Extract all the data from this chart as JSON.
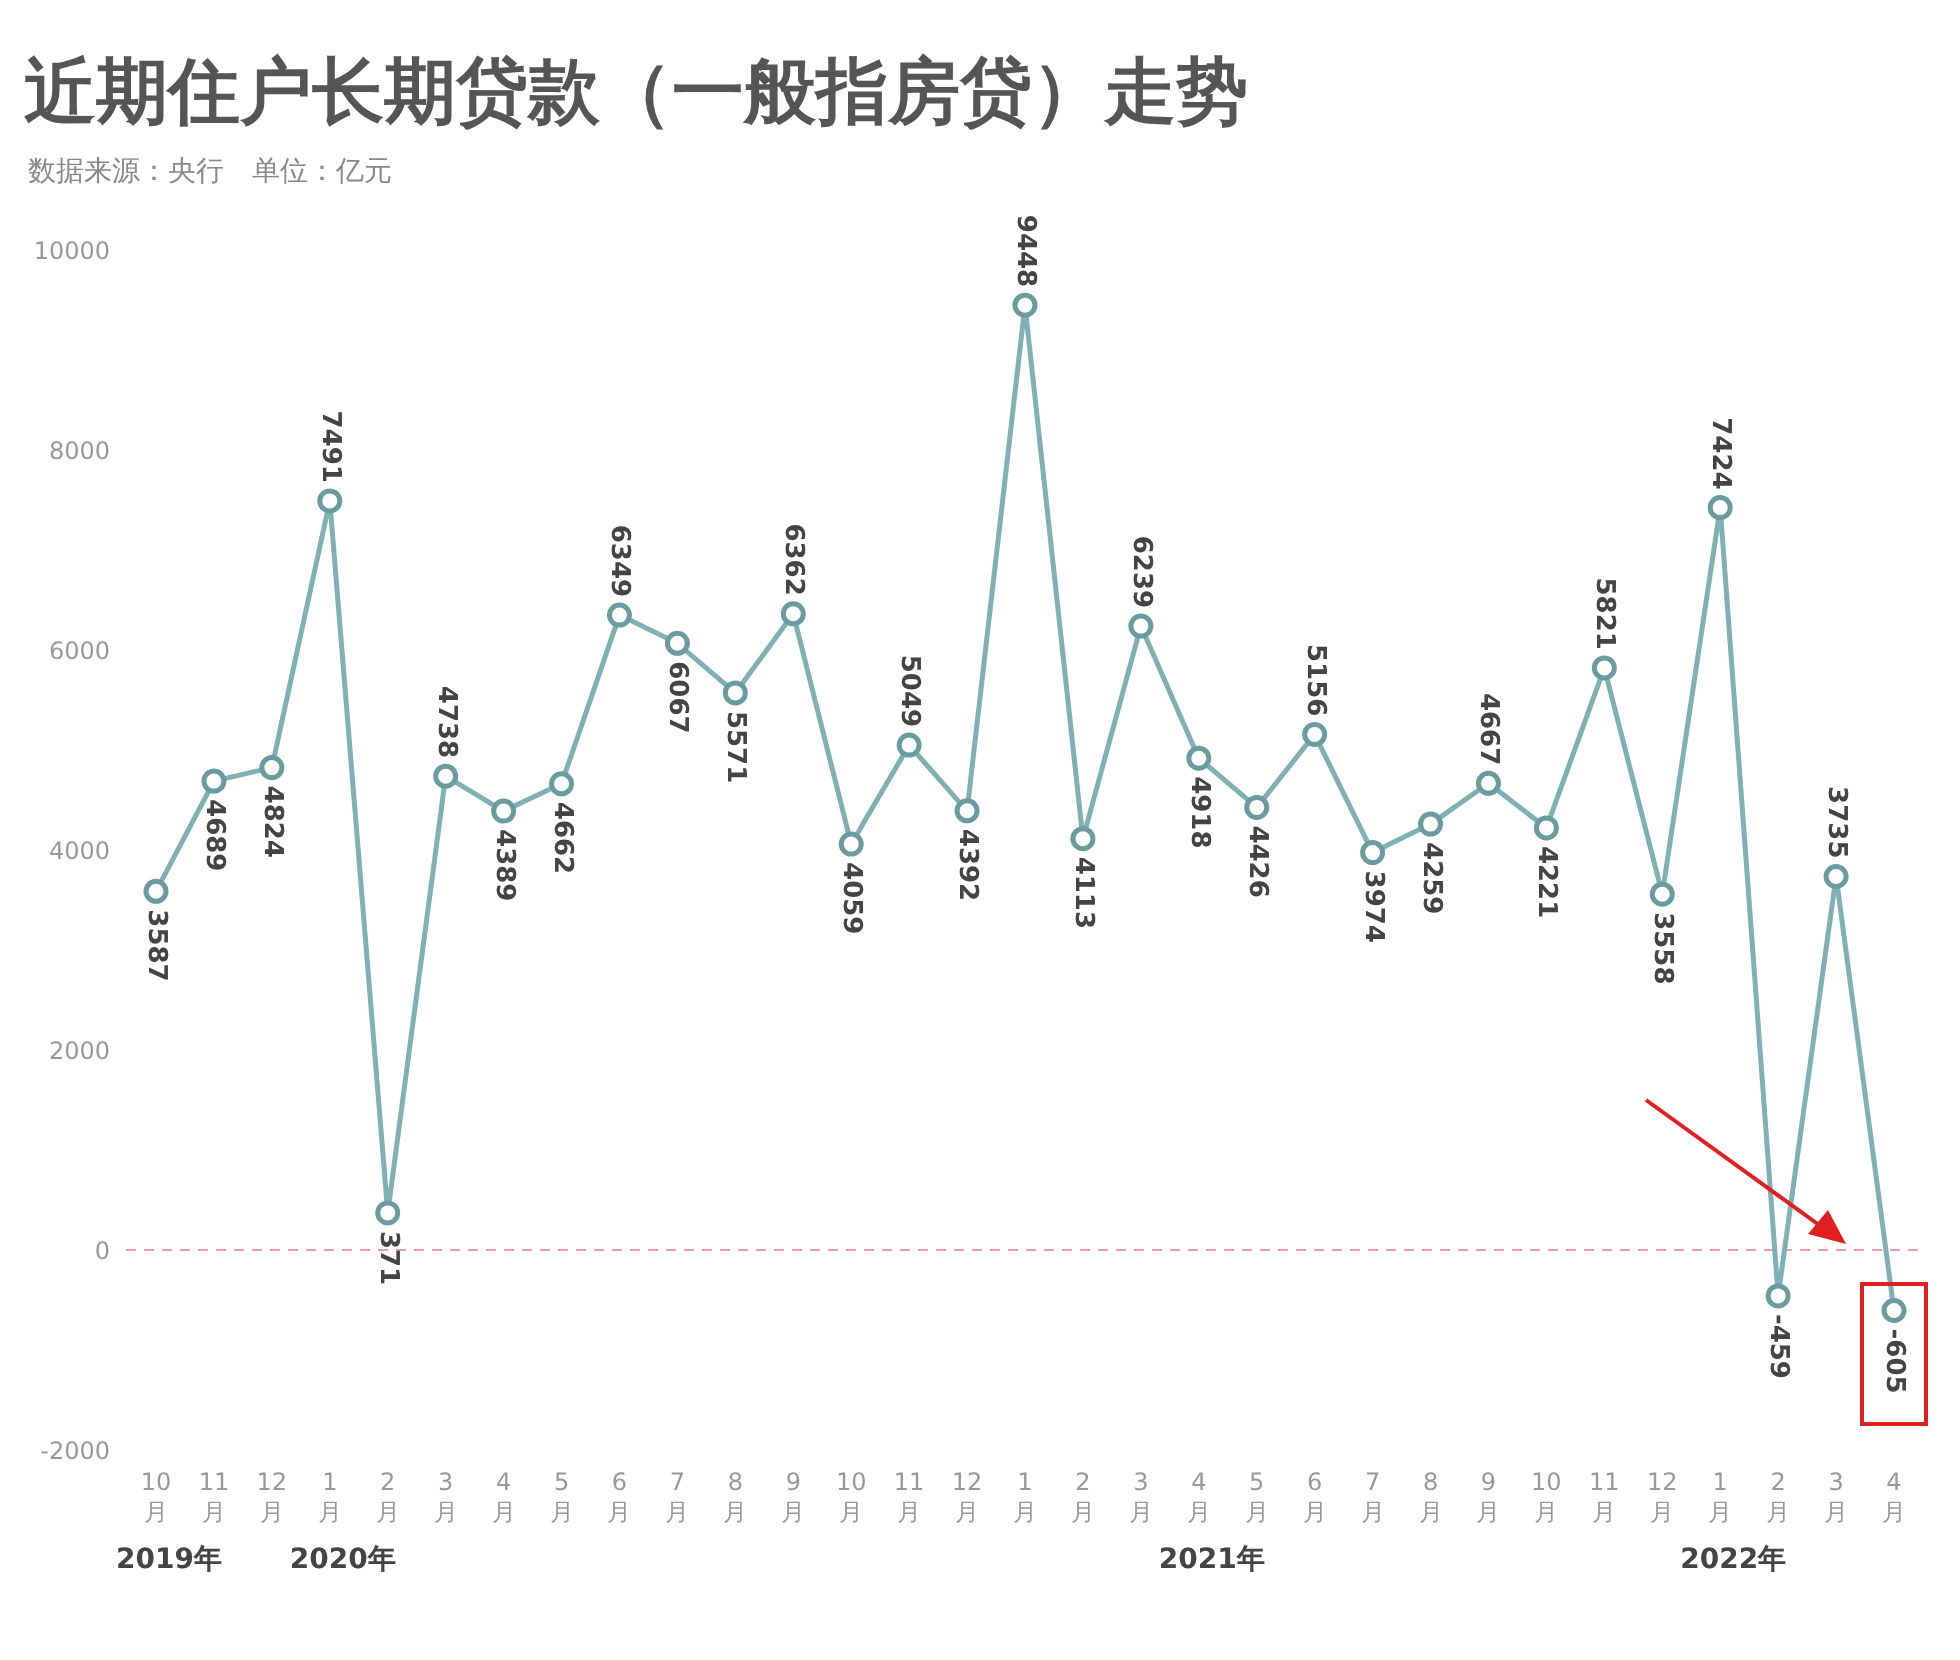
{
  "chart_data": {
    "type": "line",
    "title": "近期住户长期贷款（一般指房贷）走势",
    "subtitle": "数据来源：央行　单位：亿元",
    "categories": [
      "10月",
      "11月",
      "12月",
      "1月",
      "2月",
      "3月",
      "4月",
      "5月",
      "6月",
      "7月",
      "8月",
      "9月",
      "10月",
      "11月",
      "12月",
      "1月",
      "2月",
      "3月",
      "4月",
      "5月",
      "6月",
      "7月",
      "8月",
      "9月",
      "10月",
      "11月",
      "12月",
      "1月",
      "2月",
      "3月",
      "4月"
    ],
    "series": [
      {
        "color": "#7fb0b3",
        "values": [
          3587,
          4689,
          4824,
          7491,
          371,
          4738,
          4389,
          4662,
          6349,
          6067,
          5571,
          6362,
          4059,
          5049,
          4392,
          9448,
          4113,
          6239,
          4918,
          4426,
          5156,
          3974,
          4259,
          4667,
          4221,
          5821,
          3558,
          7424,
          -459,
          3735,
          -605
        ]
      }
    ],
    "ylim": [
      -2000,
      10000
    ],
    "yticks": [
      -2000,
      0,
      2000,
      4000,
      6000,
      8000,
      10000
    ],
    "ref_lines": [
      {
        "axis": "y",
        "value": 0,
        "color": "#e8a0a8",
        "line_style": "dashed"
      }
    ],
    "annotations": [
      "2019年",
      "2020年",
      "2021年",
      "2022年"
    ],
    "data_labels": true,
    "marker": "circle",
    "line_style": "solid",
    "grid": false,
    "legend": false
  }
}
